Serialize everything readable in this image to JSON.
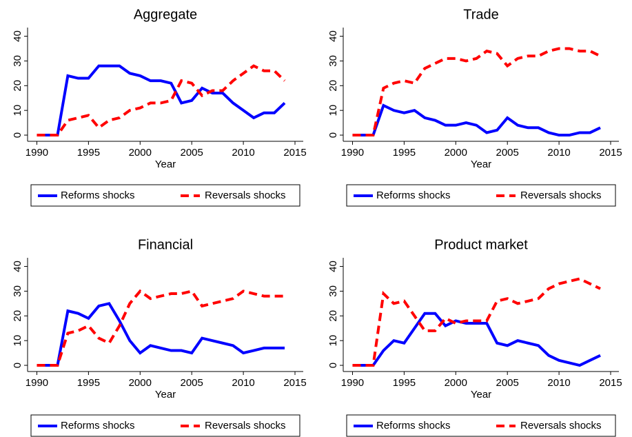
{
  "chart_data": [
    {
      "type": "line",
      "title": "Aggregate",
      "x_label": "Year",
      "x": [
        1990,
        1991,
        1992,
        1993,
        1994,
        1995,
        1996,
        1997,
        1998,
        1999,
        2000,
        2001,
        2002,
        2003,
        2004,
        2005,
        2006,
        2007,
        2008,
        2009,
        2010,
        2011,
        2012,
        2013,
        2014
      ],
      "series": [
        {
          "name": "Reforms shocks",
          "color": "#0000ff",
          "line_style": "solid",
          "values": [
            0,
            0,
            0,
            24,
            23,
            23,
            28,
            28,
            28,
            25,
            24,
            22,
            22,
            21,
            13,
            14,
            19,
            17,
            17,
            13,
            10,
            7,
            9,
            9,
            13
          ]
        },
        {
          "name": "Reversals shocks",
          "color": "#ff0000",
          "line_style": "dashed",
          "values": [
            0,
            0,
            0,
            6,
            7,
            8,
            3,
            6,
            7,
            10,
            11,
            13,
            13,
            14,
            22,
            21,
            16,
            18,
            18,
            22,
            25,
            28,
            26,
            26,
            22
          ]
        }
      ],
      "xlim": [
        1989.1,
        2015.8
      ],
      "xticks": [
        1990,
        1995,
        2000,
        2005,
        2010,
        2015
      ],
      "ylim": [
        -2.5,
        43.5
      ],
      "yticks": [
        0,
        10,
        20,
        30,
        40
      ],
      "grid": false,
      "legend": "bottom"
    },
    {
      "type": "line",
      "title": "Trade",
      "x_label": "Year",
      "x": [
        1990,
        1991,
        1992,
        1993,
        1994,
        1995,
        1996,
        1997,
        1998,
        1999,
        2000,
        2001,
        2002,
        2003,
        2004,
        2005,
        2006,
        2007,
        2008,
        2009,
        2010,
        2011,
        2012,
        2013,
        2014
      ],
      "series": [
        {
          "name": "Reforms shocks",
          "color": "#0000ff",
          "line_style": "solid",
          "values": [
            0,
            0,
            0,
            12,
            10,
            9,
            10,
            7,
            6,
            4,
            4,
            5,
            4,
            1,
            2,
            7,
            4,
            3,
            3,
            1,
            0,
            0,
            1,
            1,
            3
          ]
        },
        {
          "name": "Reversals shocks",
          "color": "#ff0000",
          "line_style": "dashed",
          "values": [
            0,
            0,
            0,
            19,
            21,
            22,
            21,
            27,
            29,
            31,
            31,
            30,
            31,
            34,
            33,
            28,
            31,
            32,
            32,
            34,
            35,
            35,
            34,
            34,
            32
          ]
        }
      ],
      "xlim": [
        1989.1,
        2015.8
      ],
      "xticks": [
        1990,
        1995,
        2000,
        2005,
        2010,
        2015
      ],
      "ylim": [
        -2.5,
        43.5
      ],
      "yticks": [
        0,
        10,
        20,
        30,
        40
      ],
      "grid": false,
      "legend": "bottom"
    },
    {
      "type": "line",
      "title": "Financial",
      "x_label": "Year",
      "x": [
        1990,
        1991,
        1992,
        1993,
        1994,
        1995,
        1996,
        1997,
        1998,
        1999,
        2000,
        2001,
        2002,
        2003,
        2004,
        2005,
        2006,
        2007,
        2008,
        2009,
        2010,
        2011,
        2012,
        2013,
        2014
      ],
      "series": [
        {
          "name": "Reforms shocks",
          "color": "#0000ff",
          "line_style": "solid",
          "values": [
            0,
            0,
            0,
            22,
            21,
            19,
            24,
            25,
            18,
            10,
            5,
            8,
            7,
            6,
            6,
            5,
            11,
            10,
            9,
            8,
            5,
            6,
            7,
            7,
            7
          ]
        },
        {
          "name": "Reversals shocks",
          "color": "#ff0000",
          "line_style": "dashed",
          "values": [
            0,
            0,
            0,
            13,
            14,
            16,
            11,
            9,
            16,
            25,
            30,
            27,
            28,
            29,
            29,
            30,
            24,
            25,
            26,
            27,
            30,
            29,
            28,
            28,
            28
          ]
        }
      ],
      "xlim": [
        1989.1,
        2015.8
      ],
      "xticks": [
        1990,
        1995,
        2000,
        2005,
        2010,
        2015
      ],
      "ylim": [
        -2.5,
        43.5
      ],
      "yticks": [
        0,
        10,
        20,
        30,
        40
      ],
      "grid": false,
      "legend": "bottom"
    },
    {
      "type": "line",
      "title": "Product market",
      "x_label": "Year",
      "x": [
        1990,
        1991,
        1992,
        1993,
        1994,
        1995,
        1996,
        1997,
        1998,
        1999,
        2000,
        2001,
        2002,
        2003,
        2004,
        2005,
        2006,
        2007,
        2008,
        2009,
        2010,
        2011,
        2012,
        2013,
        2014
      ],
      "series": [
        {
          "name": "Reforms shocks",
          "color": "#0000ff",
          "line_style": "solid",
          "values": [
            0,
            0,
            0,
            6,
            10,
            9,
            15,
            21,
            21,
            16,
            18,
            17,
            17,
            17,
            9,
            8,
            10,
            9,
            8,
            4,
            2,
            1,
            0,
            2,
            4
          ]
        },
        {
          "name": "Reversals shocks",
          "color": "#ff0000",
          "line_style": "dashed",
          "values": [
            0,
            0,
            0,
            29,
            25,
            26,
            20,
            14,
            14,
            19,
            17,
            18,
            18,
            18,
            26,
            27,
            25,
            26,
            27,
            31,
            33,
            34,
            35,
            33,
            31
          ]
        }
      ],
      "xlim": [
        1989.1,
        2015.8
      ],
      "xticks": [
        1990,
        1995,
        2000,
        2005,
        2010,
        2015
      ],
      "ylim": [
        -2.5,
        43.5
      ],
      "yticks": [
        0,
        10,
        20,
        30,
        40
      ],
      "grid": false,
      "legend": "bottom"
    }
  ]
}
